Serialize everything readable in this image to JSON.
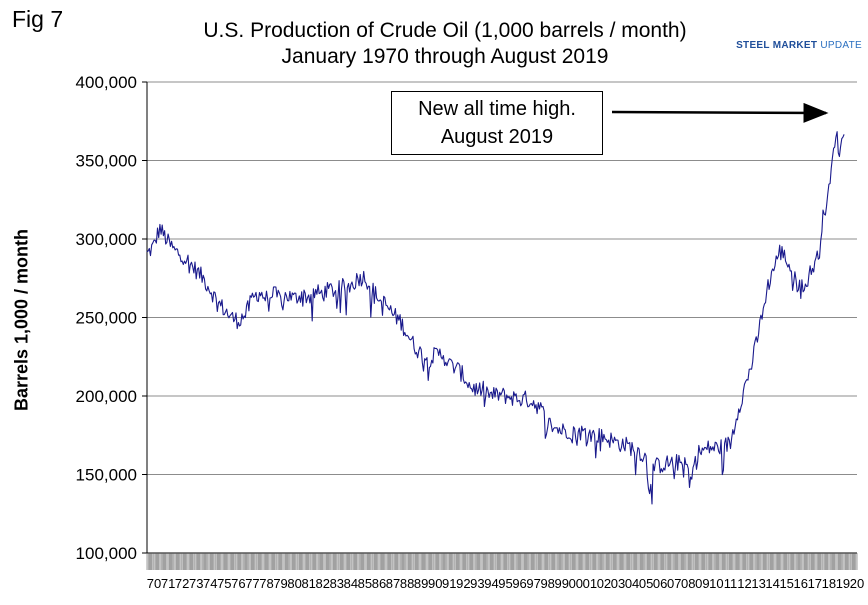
{
  "figure_label": "Fig 7",
  "brand": {
    "bold": "STEEL MARKET",
    "thin": "UPDATE"
  },
  "chart_data": {
    "type": "line",
    "title": "U.S. Production of Crude Oil (1,000 barrels / month)",
    "subtitle": "January 1970 through August 2019",
    "xlabel": "",
    "ylabel": "Barrels 1,000 / month",
    "ylim": [
      100000,
      400000
    ],
    "yticks": [
      100000,
      150000,
      200000,
      250000,
      300000,
      350000,
      400000
    ],
    "ytick_labels": [
      "100,000",
      "150,000",
      "200,000",
      "250,000",
      "300,000",
      "350,000",
      "400,000"
    ],
    "grid": "horizontal",
    "x_tick_labels": [
      "70",
      "71",
      "72",
      "73",
      "74",
      "75",
      "76",
      "77",
      "78",
      "79",
      "80",
      "81",
      "82",
      "83",
      "84",
      "85",
      "86",
      "87",
      "88",
      "89",
      "90",
      "91",
      "92",
      "93",
      "94",
      "95",
      "96",
      "97",
      "98",
      "99",
      "00",
      "01",
      "02",
      "03",
      "04",
      "05",
      "06",
      "07",
      "08",
      "09",
      "10",
      "11",
      "12",
      "13",
      "14",
      "15",
      "16",
      "17",
      "18",
      "19",
      "20"
    ],
    "annotation": {
      "line1": "New all time high.",
      "line2": "August 2019",
      "points_to": "August 2019"
    },
    "series": [
      {
        "name": "U.S. Production of Crude Oil",
        "color": "#1a1a8c",
        "x": [
          1970.0,
          1970.5,
          1970.9,
          1971.5,
          1972.0,
          1972.5,
          1973.0,
          1973.5,
          1974.0,
          1974.5,
          1975.0,
          1975.5,
          1976.0,
          1976.5,
          1977.0,
          1977.5,
          1978.0,
          1978.5,
          1979.0,
          1979.5,
          1980.0,
          1980.5,
          1981.0,
          1981.5,
          1982.0,
          1982.5,
          1983.0,
          1983.5,
          1984.0,
          1984.5,
          1985.0,
          1985.5,
          1986.0,
          1986.5,
          1987.0,
          1987.5,
          1988.0,
          1988.5,
          1989.0,
          1989.5,
          1990.0,
          1990.5,
          1991.0,
          1991.5,
          1992.0,
          1992.5,
          1993.0,
          1993.5,
          1994.0,
          1994.5,
          1995.0,
          1995.5,
          1996.0,
          1996.5,
          1997.0,
          1997.5,
          1998.0,
          1998.5,
          1999.0,
          1999.5,
          2000.0,
          2000.5,
          2001.0,
          2001.5,
          2002.0,
          2002.5,
          2003.0,
          2003.5,
          2004.0,
          2004.5,
          2005.0,
          2005.5,
          2005.7,
          2006.0,
          2006.5,
          2007.0,
          2007.5,
          2008.0,
          2008.5,
          2008.7,
          2009.0,
          2009.5,
          2010.0,
          2010.5,
          2011.0,
          2011.5,
          2012.0,
          2012.5,
          2013.0,
          2013.5,
          2014.0,
          2014.5,
          2015.0,
          2015.3,
          2015.7,
          2016.0,
          2016.5,
          2016.8,
          2017.0,
          2017.5,
          2017.8,
          2018.0,
          2018.5,
          2018.7,
          2018.9,
          2019.0,
          2019.2,
          2019.4,
          2019.6
        ],
        "values": [
          290000,
          296000,
          307000,
          298000,
          292000,
          290000,
          285000,
          280000,
          275000,
          268000,
          260000,
          255000,
          250000,
          248000,
          252000,
          262000,
          266000,
          262000,
          265000,
          262000,
          264000,
          262000,
          265000,
          263000,
          266000,
          265000,
          268000,
          267000,
          270000,
          270000,
          275000,
          276000,
          268000,
          262000,
          258000,
          252000,
          248000,
          240000,
          232000,
          227000,
          223000,
          226000,
          227000,
          220000,
          218000,
          213000,
          206000,
          204000,
          204000,
          200000,
          201000,
          200000,
          199000,
          198000,
          198000,
          196000,
          192000,
          183000,
          180000,
          178000,
          178000,
          177000,
          177000,
          176000,
          175000,
          174000,
          172000,
          170000,
          169000,
          167000,
          165000,
          160000,
          140000,
          155000,
          156000,
          157000,
          158000,
          157000,
          154000,
          145000,
          163000,
          165000,
          167000,
          167000,
          168000,
          170000,
          190000,
          205000,
          220000,
          240000,
          265000,
          280000,
          292000,
          290000,
          283000,
          275000,
          270000,
          268000,
          275000,
          285000,
          290000,
          310000,
          330000,
          345000,
          360000,
          370000,
          355000,
          360000,
          372000
        ]
      }
    ]
  }
}
